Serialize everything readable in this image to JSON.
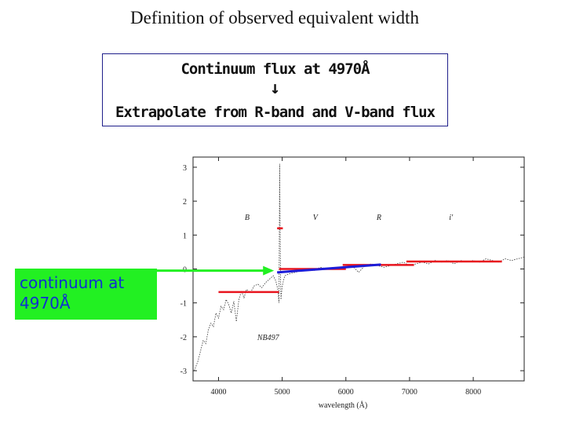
{
  "slide": {
    "title": "Definition of observed equivalent width"
  },
  "callout": {
    "line1": "Continuum flux at 4970Å",
    "arrow": "↓",
    "line2": "Extrapolate from R-band and V-band flux"
  },
  "green_label": {
    "line1": "continuum at",
    "line2": "4970Å"
  },
  "colors": {
    "band_red": "#e8141e",
    "continuum_blue": "#1c1cd8",
    "arrow_green": "#22f022",
    "label_blue": "#1030d0"
  },
  "chart_data": {
    "type": "line",
    "xlabel": "wavelength (Å)",
    "ylabel": "",
    "xlim": [
      3600,
      8800
    ],
    "ylim": [
      -3.3,
      3.3
    ],
    "x_ticks": [
      4000,
      5000,
      6000,
      7000,
      8000
    ],
    "y_ticks": [
      3,
      2,
      1,
      0,
      -1,
      -2,
      -3
    ],
    "band_labels": [
      {
        "text": "B",
        "x": 4450,
        "y": 1.45
      },
      {
        "text": "V",
        "x": 5520,
        "y": 1.45
      },
      {
        "text": "R",
        "x": 6520,
        "y": 1.45
      },
      {
        "text": "i'",
        "x": 7650,
        "y": 1.45
      },
      {
        "text": "NB497",
        "x": 4780,
        "y": -2.1
      }
    ],
    "band_segments": [
      {
        "band": "B",
        "x": [
          4000,
          4950
        ],
        "y": -0.68
      },
      {
        "band": "NB497",
        "x": [
          4920,
          5010
        ],
        "y": 1.2
      },
      {
        "band": "V",
        "x": [
          4950,
          6000
        ],
        "y": 0.0
      },
      {
        "band": "R",
        "x": [
          5950,
          7070
        ],
        "y": 0.12
      },
      {
        "band": "i'",
        "x": [
          6950,
          8450
        ],
        "y": 0.22
      }
    ],
    "continuum_fit": {
      "x": [
        4920,
        6550
      ],
      "y": [
        -0.1,
        0.13
      ]
    },
    "spectrum": {
      "x": [
        3620,
        3680,
        3720,
        3760,
        3800,
        3840,
        3880,
        3920,
        3960,
        4000,
        4040,
        4080,
        4120,
        4160,
        4200,
        4240,
        4280,
        4320,
        4360,
        4400,
        4440,
        4500,
        4560,
        4620,
        4680,
        4740,
        4800,
        4860,
        4900,
        4930,
        4950,
        4960,
        4970,
        4980,
        5000,
        5040,
        5100,
        5200,
        5300,
        5400,
        5500,
        5600,
        5700,
        5800,
        5900,
        6000,
        6100,
        6200,
        6300,
        6400,
        6500,
        6600,
        6700,
        6800,
        6900,
        7000,
        7100,
        7200,
        7300,
        7400,
        7500,
        7600,
        7700,
        7800,
        7900,
        8000,
        8100,
        8200,
        8300,
        8400,
        8500,
        8600,
        8700,
        8800
      ],
      "y": [
        -3.0,
        -2.7,
        -2.4,
        -2.1,
        -2.2,
        -1.8,
        -1.6,
        -1.7,
        -1.3,
        -1.45,
        -1.1,
        -1.2,
        -0.9,
        -1.05,
        -1.3,
        -0.95,
        -1.55,
        -0.9,
        -0.65,
        -0.85,
        -0.6,
        -0.7,
        -0.5,
        -0.45,
        -0.55,
        -0.4,
        -0.3,
        -0.2,
        -0.35,
        -0.6,
        -1.0,
        3.1,
        0.4,
        -0.9,
        -0.5,
        -0.2,
        -0.15,
        -0.1,
        -0.05,
        0.0,
        -0.05,
        0.05,
        0.0,
        0.05,
        0.0,
        0.05,
        0.1,
        -0.1,
        0.1,
        0.15,
        0.1,
        0.05,
        0.1,
        0.15,
        0.2,
        0.1,
        0.15,
        0.2,
        0.15,
        0.25,
        0.2,
        0.25,
        0.15,
        0.25,
        0.2,
        0.25,
        0.2,
        0.3,
        0.25,
        0.2,
        0.3,
        0.25,
        0.3,
        0.35
      ]
    },
    "annotation_arrow": {
      "from_x": 3300,
      "to_x": 4970,
      "y": -0.05
    }
  }
}
